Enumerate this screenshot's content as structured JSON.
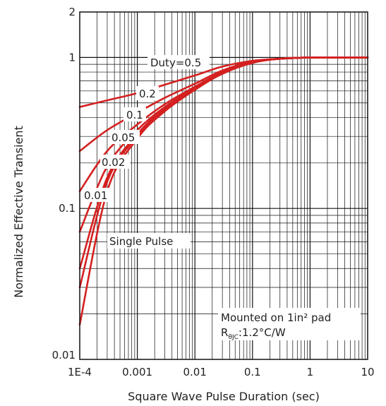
{
  "chart_data": {
    "type": "line",
    "xscale": "log",
    "yscale": "log",
    "xlim": [
      0.0001,
      10
    ],
    "ylim": [
      0.01,
      2
    ],
    "xlabel": "Square Wave Pulse Duration (sec)",
    "ylabel": "Normalized Effective Transient",
    "x_ticks": [
      {
        "value": 0.0001,
        "label": "1E-4"
      },
      {
        "value": 0.001,
        "label": "0.001"
      },
      {
        "value": 0.01,
        "label": "0.01"
      },
      {
        "value": 0.1,
        "label": "0.1"
      },
      {
        "value": 1,
        "label": "1"
      },
      {
        "value": 10,
        "label": "10"
      }
    ],
    "y_ticks": [
      {
        "value": 0.01,
        "label": "0.01"
      },
      {
        "value": 0.1,
        "label": "0.1"
      },
      {
        "value": 1,
        "label": "1"
      },
      {
        "value": 2,
        "label": "2"
      }
    ],
    "grid": true,
    "line_color": "#d42020",
    "series": [
      {
        "name": "Duty=0.5",
        "x": [
          0.0001,
          0.0003,
          0.001,
          0.003,
          0.01,
          0.03,
          0.1,
          0.3,
          1,
          3,
          10
        ],
        "y": [
          0.47,
          0.52,
          0.58,
          0.66,
          0.76,
          0.87,
          0.95,
          0.98,
          1.0,
          1.0,
          1.0
        ]
      },
      {
        "name": "0.2",
        "x": [
          0.0001,
          0.0003,
          0.001,
          0.003,
          0.01,
          0.03,
          0.1,
          0.3,
          1,
          3,
          10
        ],
        "y": [
          0.24,
          0.33,
          0.43,
          0.54,
          0.67,
          0.82,
          0.94,
          0.98,
          1.0,
          1.0,
          1.0
        ]
      },
      {
        "name": "0.1",
        "x": [
          0.0001,
          0.0003,
          0.001,
          0.003,
          0.01,
          0.03,
          0.1,
          0.3,
          1,
          3,
          10
        ],
        "y": [
          0.13,
          0.24,
          0.36,
          0.49,
          0.64,
          0.8,
          0.93,
          0.98,
          1.0,
          1.0,
          1.0
        ]
      },
      {
        "name": "0.05",
        "x": [
          0.0001,
          0.0003,
          0.001,
          0.003,
          0.01,
          0.03,
          0.1,
          0.3,
          1,
          3,
          10
        ],
        "y": [
          0.07,
          0.19,
          0.33,
          0.47,
          0.63,
          0.79,
          0.93,
          0.98,
          1.0,
          1.0,
          1.0
        ]
      },
      {
        "name": "0.02",
        "x": [
          0.0001,
          0.0003,
          0.001,
          0.003,
          0.01,
          0.03,
          0.1,
          0.3,
          1,
          3,
          10
        ],
        "y": [
          0.04,
          0.16,
          0.31,
          0.46,
          0.62,
          0.79,
          0.93,
          0.98,
          1.0,
          1.0,
          1.0
        ]
      },
      {
        "name": "0.01",
        "x": [
          0.0001,
          0.0003,
          0.001,
          0.003,
          0.01,
          0.03,
          0.1,
          0.3,
          1,
          3,
          10
        ],
        "y": [
          0.03,
          0.15,
          0.3,
          0.45,
          0.62,
          0.78,
          0.93,
          0.98,
          1.0,
          1.0,
          1.0
        ]
      },
      {
        "name": "Single Pulse",
        "x": [
          0.0001,
          0.0003,
          0.001,
          0.003,
          0.01,
          0.03,
          0.1,
          0.3,
          1,
          3,
          10
        ],
        "y": [
          0.017,
          0.13,
          0.29,
          0.44,
          0.61,
          0.78,
          0.92,
          0.98,
          1.0,
          1.0,
          1.0
        ]
      }
    ],
    "annotations": {
      "note_line1": "Mounted on 1in² pad",
      "note_r": "R",
      "note_sub": "θJC",
      "note_value": ":1.2°C/W"
    }
  }
}
